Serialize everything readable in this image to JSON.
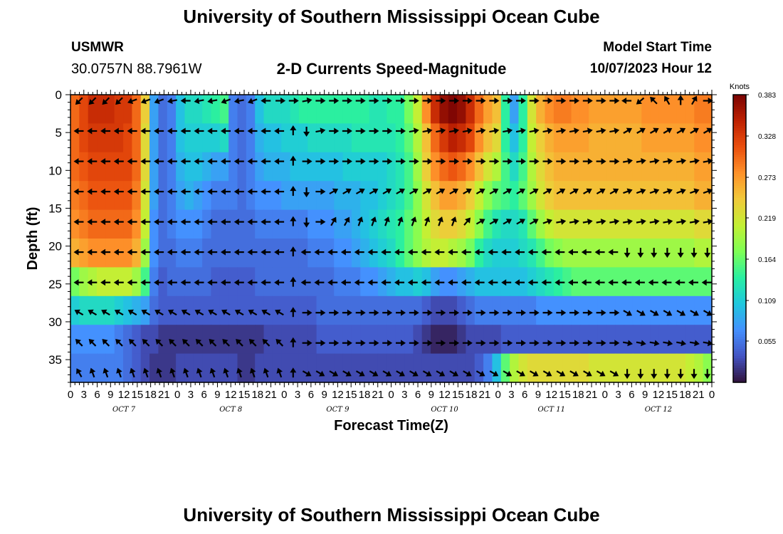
{
  "title": "University of Southern Mississippi Ocean Cube",
  "footer_title": "University of Southern Mississippi Ocean Cube",
  "station": {
    "name": "USMWR",
    "coords": "30.0757N  88.7961W"
  },
  "subtitle": "2-D Currents Speed-Magnitude",
  "model_start": {
    "label": "Model Start Time",
    "value": "10/07/2023 Hour 12"
  },
  "chart_data": {
    "type": "heatmap",
    "title": "2-D Currents Speed-Magnitude",
    "xlabel": "Forecast Time(Z)",
    "ylabel": "Depth (ft)",
    "ylim": [
      0,
      38
    ],
    "y_ticks": [
      0,
      5,
      10,
      15,
      20,
      25,
      30,
      35
    ],
    "x_hours_range": [
      0,
      144
    ],
    "x_tick_labels": [
      "0",
      "3",
      "6",
      "9",
      "12",
      "15",
      "18",
      "21",
      "0",
      "3",
      "6",
      "9",
      "12",
      "15",
      "18",
      "21",
      "0",
      "3",
      "6",
      "9",
      "12",
      "15",
      "18",
      "21",
      "0",
      "3",
      "6",
      "9",
      "12",
      "15",
      "18",
      "21",
      "0",
      "3",
      "6",
      "9",
      "12",
      "15",
      "18",
      "21",
      "0",
      "3",
      "6",
      "9",
      "12",
      "15",
      "18",
      "21",
      "0"
    ],
    "day_labels": [
      "OCT 7",
      "OCT 8",
      "OCT 9",
      "OCT 10",
      "OCT 11",
      "OCT 12"
    ],
    "colorbar": {
      "label": "Knots",
      "ticks": [
        "0.383",
        "0.328",
        "0.273",
        "0.219",
        "0.164",
        "0.109",
        "0.055"
      ],
      "range": [
        0,
        0.383
      ],
      "colors": [
        "#30123b",
        "#4454c4",
        "#4490fe",
        "#1fc8de",
        "#29efa2",
        "#7eff55",
        "#c3f034",
        "#f1ca3a",
        "#fe922a",
        "#ea4f0d",
        "#be2102",
        "#7a0403"
      ]
    },
    "depths_ft": [
      0.5,
      4.5,
      8.5,
      12.5,
      16.5,
      20.5,
      24.5,
      28.5,
      32.5,
      36.5
    ],
    "speed_knots": [
      [
        0.3,
        0.32,
        0.34,
        0.34,
        0.34,
        0.33,
        0.33,
        0.3,
        0.24,
        0.08,
        0.05,
        0.06,
        0.1,
        0.12,
        0.12,
        0.13,
        0.14,
        0.15,
        0.06,
        0.05,
        0.06,
        0.1,
        0.12,
        0.12,
        0.12,
        0.13,
        0.14,
        0.14,
        0.14,
        0.14,
        0.14,
        0.14,
        0.14,
        0.14,
        0.13,
        0.13,
        0.14,
        0.14,
        0.17,
        0.21,
        0.28,
        0.34,
        0.37,
        0.38,
        0.37,
        0.34,
        0.3,
        0.27,
        0.25,
        0.14,
        0.08,
        0.14,
        0.22,
        0.26,
        0.28,
        0.29,
        0.29,
        0.28,
        0.28,
        0.27,
        0.27,
        0.27,
        0.27,
        0.27,
        0.27,
        0.28,
        0.28,
        0.28,
        0.28,
        0.28,
        0.28,
        0.29,
        0.29
      ],
      [
        0.3,
        0.32,
        0.33,
        0.33,
        0.33,
        0.33,
        0.32,
        0.3,
        0.23,
        0.08,
        0.05,
        0.06,
        0.1,
        0.11,
        0.11,
        0.11,
        0.11,
        0.12,
        0.06,
        0.05,
        0.06,
        0.09,
        0.1,
        0.1,
        0.11,
        0.11,
        0.11,
        0.12,
        0.12,
        0.12,
        0.12,
        0.12,
        0.13,
        0.13,
        0.13,
        0.13,
        0.13,
        0.14,
        0.16,
        0.2,
        0.25,
        0.3,
        0.33,
        0.35,
        0.34,
        0.32,
        0.28,
        0.25,
        0.23,
        0.14,
        0.1,
        0.14,
        0.21,
        0.24,
        0.26,
        0.27,
        0.27,
        0.27,
        0.27,
        0.26,
        0.26,
        0.26,
        0.26,
        0.26,
        0.26,
        0.27,
        0.27,
        0.27,
        0.27,
        0.27,
        0.27,
        0.28,
        0.28
      ],
      [
        0.3,
        0.31,
        0.32,
        0.32,
        0.32,
        0.32,
        0.32,
        0.3,
        0.23,
        0.08,
        0.05,
        0.06,
        0.09,
        0.1,
        0.1,
        0.09,
        0.08,
        0.08,
        0.06,
        0.05,
        0.06,
        0.08,
        0.09,
        0.09,
        0.09,
        0.1,
        0.1,
        0.1,
        0.1,
        0.1,
        0.1,
        0.11,
        0.11,
        0.11,
        0.11,
        0.11,
        0.12,
        0.13,
        0.15,
        0.19,
        0.24,
        0.28,
        0.3,
        0.31,
        0.3,
        0.28,
        0.25,
        0.22,
        0.2,
        0.15,
        0.12,
        0.15,
        0.2,
        0.23,
        0.25,
        0.26,
        0.26,
        0.26,
        0.26,
        0.26,
        0.26,
        0.26,
        0.26,
        0.26,
        0.26,
        0.26,
        0.26,
        0.26,
        0.26,
        0.26,
        0.26,
        0.27,
        0.27
      ],
      [
        0.29,
        0.3,
        0.31,
        0.31,
        0.31,
        0.31,
        0.31,
        0.29,
        0.22,
        0.08,
        0.05,
        0.06,
        0.08,
        0.09,
        0.08,
        0.07,
        0.06,
        0.06,
        0.06,
        0.05,
        0.06,
        0.07,
        0.07,
        0.07,
        0.08,
        0.08,
        0.08,
        0.08,
        0.08,
        0.08,
        0.09,
        0.09,
        0.09,
        0.1,
        0.1,
        0.11,
        0.12,
        0.13,
        0.15,
        0.18,
        0.22,
        0.25,
        0.27,
        0.27,
        0.26,
        0.24,
        0.21,
        0.18,
        0.16,
        0.15,
        0.14,
        0.16,
        0.19,
        0.22,
        0.24,
        0.25,
        0.25,
        0.25,
        0.25,
        0.25,
        0.25,
        0.25,
        0.25,
        0.25,
        0.25,
        0.25,
        0.25,
        0.25,
        0.25,
        0.25,
        0.25,
        0.26,
        0.26
      ],
      [
        0.28,
        0.29,
        0.3,
        0.3,
        0.3,
        0.3,
        0.3,
        0.28,
        0.21,
        0.07,
        0.05,
        0.06,
        0.07,
        0.07,
        0.07,
        0.06,
        0.05,
        0.05,
        0.05,
        0.05,
        0.05,
        0.06,
        0.06,
        0.06,
        0.06,
        0.06,
        0.06,
        0.07,
        0.07,
        0.07,
        0.08,
        0.08,
        0.09,
        0.1,
        0.11,
        0.12,
        0.13,
        0.14,
        0.16,
        0.18,
        0.21,
        0.23,
        0.24,
        0.24,
        0.23,
        0.21,
        0.18,
        0.15,
        0.13,
        0.12,
        0.12,
        0.13,
        0.16,
        0.19,
        0.21,
        0.22,
        0.22,
        0.22,
        0.22,
        0.22,
        0.22,
        0.22,
        0.22,
        0.22,
        0.22,
        0.22,
        0.22,
        0.22,
        0.22,
        0.22,
        0.22,
        0.23,
        0.23
      ],
      [
        0.26,
        0.27,
        0.28,
        0.28,
        0.28,
        0.28,
        0.28,
        0.26,
        0.19,
        0.07,
        0.05,
        0.05,
        0.06,
        0.06,
        0.06,
        0.05,
        0.05,
        0.05,
        0.05,
        0.05,
        0.05,
        0.05,
        0.05,
        0.05,
        0.05,
        0.05,
        0.05,
        0.06,
        0.06,
        0.06,
        0.07,
        0.07,
        0.08,
        0.09,
        0.1,
        0.11,
        0.12,
        0.14,
        0.16,
        0.18,
        0.2,
        0.21,
        0.21,
        0.2,
        0.19,
        0.17,
        0.14,
        0.12,
        0.11,
        0.11,
        0.11,
        0.12,
        0.13,
        0.15,
        0.17,
        0.18,
        0.19,
        0.19,
        0.19,
        0.19,
        0.19,
        0.19,
        0.19,
        0.19,
        0.19,
        0.19,
        0.19,
        0.19,
        0.19,
        0.19,
        0.19,
        0.2,
        0.2
      ],
      [
        0.17,
        0.19,
        0.2,
        0.21,
        0.21,
        0.21,
        0.21,
        0.19,
        0.15,
        0.06,
        0.04,
        0.05,
        0.05,
        0.05,
        0.05,
        0.05,
        0.04,
        0.04,
        0.04,
        0.04,
        0.04,
        0.05,
        0.05,
        0.05,
        0.05,
        0.05,
        0.05,
        0.05,
        0.05,
        0.05,
        0.06,
        0.06,
        0.06,
        0.07,
        0.07,
        0.08,
        0.09,
        0.1,
        0.1,
        0.11,
        0.1,
        0.08,
        0.07,
        0.07,
        0.08,
        0.09,
        0.1,
        0.1,
        0.1,
        0.1,
        0.1,
        0.1,
        0.11,
        0.12,
        0.13,
        0.14,
        0.15,
        0.16,
        0.16,
        0.16,
        0.16,
        0.16,
        0.16,
        0.16,
        0.16,
        0.16,
        0.16,
        0.16,
        0.16,
        0.16,
        0.16,
        0.16,
        0.16
      ],
      [
        0.11,
        0.12,
        0.12,
        0.12,
        0.12,
        0.11,
        0.1,
        0.09,
        0.08,
        0.05,
        0.04,
        0.04,
        0.04,
        0.04,
        0.04,
        0.04,
        0.04,
        0.04,
        0.04,
        0.04,
        0.04,
        0.04,
        0.04,
        0.04,
        0.04,
        0.04,
        0.04,
        0.04,
        0.05,
        0.05,
        0.05,
        0.05,
        0.05,
        0.05,
        0.05,
        0.05,
        0.05,
        0.05,
        0.05,
        0.05,
        0.04,
        0.03,
        0.03,
        0.03,
        0.04,
        0.05,
        0.06,
        0.06,
        0.06,
        0.06,
        0.06,
        0.06,
        0.06,
        0.07,
        0.07,
        0.07,
        0.07,
        0.07,
        0.07,
        0.07,
        0.07,
        0.07,
        0.07,
        0.07,
        0.07,
        0.07,
        0.07,
        0.07,
        0.07,
        0.07,
        0.07,
        0.07,
        0.07
      ],
      [
        0.07,
        0.07,
        0.07,
        0.07,
        0.07,
        0.06,
        0.05,
        0.04,
        0.03,
        0.03,
        0.02,
        0.02,
        0.02,
        0.02,
        0.02,
        0.02,
        0.02,
        0.02,
        0.02,
        0.02,
        0.02,
        0.02,
        0.03,
        0.03,
        0.03,
        0.03,
        0.03,
        0.03,
        0.04,
        0.04,
        0.04,
        0.04,
        0.04,
        0.04,
        0.04,
        0.04,
        0.04,
        0.04,
        0.04,
        0.03,
        0.02,
        0.01,
        0.01,
        0.01,
        0.02,
        0.03,
        0.03,
        0.03,
        0.03,
        0.04,
        0.04,
        0.04,
        0.04,
        0.04,
        0.04,
        0.04,
        0.04,
        0.04,
        0.04,
        0.04,
        0.04,
        0.04,
        0.04,
        0.04,
        0.04,
        0.04,
        0.04,
        0.04,
        0.04,
        0.04,
        0.04,
        0.04,
        0.04
      ],
      [
        0.06,
        0.06,
        0.06,
        0.06,
        0.06,
        0.06,
        0.05,
        0.04,
        0.03,
        0.02,
        0.02,
        0.02,
        0.03,
        0.03,
        0.03,
        0.03,
        0.03,
        0.03,
        0.03,
        0.02,
        0.02,
        0.03,
        0.03,
        0.03,
        0.03,
        0.03,
        0.03,
        0.03,
        0.03,
        0.03,
        0.03,
        0.03,
        0.03,
        0.03,
        0.03,
        0.03,
        0.03,
        0.03,
        0.03,
        0.03,
        0.03,
        0.03,
        0.03,
        0.03,
        0.03,
        0.03,
        0.04,
        0.06,
        0.1,
        0.16,
        0.2,
        0.22,
        0.23,
        0.23,
        0.23,
        0.23,
        0.23,
        0.23,
        0.23,
        0.22,
        0.22,
        0.22,
        0.22,
        0.22,
        0.22,
        0.22,
        0.22,
        0.22,
        0.22,
        0.22,
        0.21,
        0.2,
        0.18
      ]
    ],
    "vector_hours": [
      2,
      5,
      8,
      11,
      14,
      17,
      20,
      23,
      26,
      29,
      32,
      35,
      38,
      41,
      44,
      47,
      50,
      53,
      56,
      59,
      62,
      65,
      68,
      71,
      74,
      77,
      80,
      83,
      86,
      89,
      92,
      95,
      98,
      101,
      104,
      107,
      110,
      113,
      116,
      119,
      122,
      125,
      128,
      131,
      134,
      137,
      140,
      143
    ],
    "direction_deg": [
      [
        225,
        225,
        225,
        225,
        250,
        250,
        250,
        260,
        270,
        260,
        260,
        250,
        260,
        250,
        270,
        90,
        90,
        80,
        90,
        90,
        90,
        90,
        90,
        90,
        90,
        90,
        90,
        90,
        90,
        90,
        90,
        90,
        90,
        90,
        90,
        90,
        90,
        90,
        90,
        90,
        90,
        270,
        230,
        315,
        330,
        0,
        30,
        90
      ],
      [
        270,
        270,
        270,
        270,
        270,
        270,
        270,
        270,
        270,
        270,
        270,
        270,
        270,
        270,
        270,
        270,
        0,
        180,
        80,
        90,
        90,
        90,
        90,
        90,
        90,
        80,
        80,
        80,
        80,
        80,
        80,
        80,
        80,
        80,
        80,
        80,
        80,
        80,
        80,
        80,
        80,
        60,
        60,
        60,
        60,
        60,
        60,
        60
      ],
      [
        270,
        270,
        270,
        270,
        270,
        270,
        270,
        270,
        270,
        270,
        270,
        270,
        270,
        270,
        270,
        270,
        0,
        90,
        90,
        90,
        90,
        90,
        90,
        90,
        90,
        90,
        90,
        90,
        90,
        90,
        90,
        90,
        90,
        90,
        90,
        90,
        90,
        90,
        90,
        90,
        90,
        80,
        80,
        80,
        80,
        80,
        80,
        80
      ],
      [
        270,
        270,
        270,
        270,
        270,
        270,
        270,
        270,
        270,
        270,
        270,
        270,
        270,
        270,
        270,
        270,
        0,
        180,
        90,
        60,
        60,
        60,
        60,
        60,
        60,
        60,
        60,
        60,
        60,
        60,
        60,
        60,
        60,
        60,
        60,
        60,
        60,
        60,
        60,
        60,
        60,
        70,
        70,
        70,
        70,
        70,
        70,
        70
      ],
      [
        270,
        270,
        270,
        270,
        270,
        270,
        270,
        270,
        270,
        270,
        270,
        270,
        270,
        270,
        270,
        270,
        0,
        180,
        90,
        30,
        30,
        20,
        20,
        20,
        20,
        20,
        20,
        20,
        20,
        40,
        60,
        60,
        60,
        60,
        60,
        70,
        80,
        80,
        80,
        80,
        80,
        80,
        80,
        80,
        80,
        80,
        80,
        80
      ],
      [
        270,
        270,
        270,
        270,
        270,
        270,
        270,
        270,
        270,
        270,
        270,
        270,
        270,
        270,
        270,
        270,
        0,
        270,
        270,
        270,
        270,
        270,
        270,
        270,
        270,
        270,
        270,
        270,
        270,
        270,
        270,
        270,
        270,
        270,
        270,
        270,
        270,
        270,
        270,
        270,
        270,
        180,
        180,
        180,
        180,
        180,
        180,
        180
      ],
      [
        270,
        270,
        270,
        270,
        270,
        270,
        270,
        270,
        270,
        270,
        270,
        270,
        270,
        270,
        270,
        270,
        0,
        270,
        270,
        270,
        270,
        270,
        270,
        270,
        270,
        270,
        270,
        270,
        270,
        270,
        270,
        270,
        270,
        270,
        270,
        270,
        270,
        270,
        270,
        270,
        270,
        270,
        270,
        270,
        270,
        270,
        270,
        270
      ],
      [
        300,
        300,
        300,
        300,
        300,
        300,
        300,
        300,
        300,
        300,
        300,
        300,
        300,
        300,
        300,
        300,
        0,
        90,
        90,
        90,
        90,
        90,
        90,
        90,
        90,
        90,
        90,
        90,
        90,
        90,
        90,
        90,
        90,
        90,
        90,
        90,
        90,
        90,
        90,
        90,
        90,
        120,
        120,
        120,
        120,
        120,
        120,
        120
      ],
      [
        315,
        315,
        315,
        315,
        315,
        315,
        315,
        315,
        315,
        315,
        315,
        315,
        315,
        315,
        315,
        315,
        0,
        90,
        90,
        90,
        90,
        90,
        90,
        90,
        90,
        90,
        90,
        90,
        90,
        90,
        90,
        90,
        90,
        90,
        90,
        90,
        90,
        90,
        90,
        90,
        90,
        100,
        100,
        100,
        100,
        100,
        100,
        100
      ],
      [
        330,
        340,
        340,
        340,
        340,
        340,
        340,
        340,
        340,
        340,
        340,
        340,
        340,
        340,
        340,
        340,
        0,
        120,
        120,
        120,
        120,
        120,
        120,
        120,
        120,
        120,
        120,
        120,
        120,
        120,
        120,
        120,
        120,
        120,
        120,
        120,
        120,
        120,
        120,
        120,
        120,
        180,
        180,
        180,
        180,
        180,
        180,
        180
      ]
    ]
  }
}
